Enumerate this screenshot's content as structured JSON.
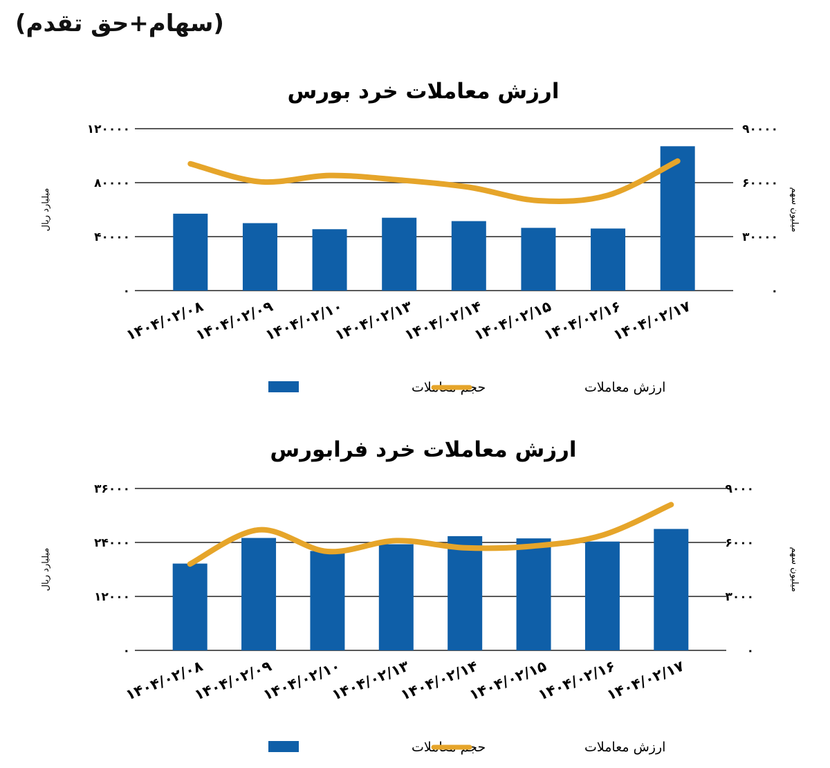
{
  "heading": "(سهام+حق تقدم)",
  "chart_data": [
    {
      "type": "bar",
      "title": "ارزش معاملات خرد بورس",
      "ylabel": "میلیارد ریال",
      "y2label": "میلیون سهم",
      "ylim": [
        0,
        120000
      ],
      "y2lim": [
        0,
        90000
      ],
      "yticks": [
        "۱۲۰۰۰۰",
        "۸۰۰۰۰",
        "۴۰۰۰۰",
        "۰"
      ],
      "y2ticks": [
        "۹۰۰۰۰",
        "۶۰۰۰۰",
        "۳۰۰۰۰",
        "۰"
      ],
      "grid": true,
      "legend": "bottom",
      "categories": [
        "۱۴۰۴/۰۲/۰۸",
        "۱۴۰۴/۰۲/۰۹",
        "۱۴۰۴/۰۲/۱۰",
        "۱۴۰۴/۰۲/۱۳",
        "۱۴۰۴/۰۲/۱۴",
        "۱۴۰۴/۰۲/۱۵",
        "۱۴۰۴/۰۲/۱۶",
        "۱۴۰۴/۰۲/۱۷"
      ],
      "series": [
        {
          "name": "حجم معاملات",
          "kind": "bar",
          "axis": "left",
          "color": "#0f5fa8",
          "values": [
            57000,
            50000,
            45500,
            54000,
            51500,
            46500,
            46000,
            107000
          ]
        },
        {
          "name": "ارزش معاملات",
          "kind": "line",
          "axis": "right",
          "color": "#e6a52a",
          "values": [
            70500,
            60500,
            64000,
            61500,
            57500,
            50000,
            53000,
            72000
          ]
        }
      ]
    },
    {
      "type": "bar",
      "title": "ارزش معاملات خرد فرابورس",
      "ylabel": "میلیارد ریال",
      "y2label": "میلیون سهم",
      "ylim": [
        0,
        36000
      ],
      "y2lim": [
        0,
        9000
      ],
      "yticks": [
        "۳۶۰۰۰",
        "۲۴۰۰۰",
        "۱۲۰۰۰",
        "۰"
      ],
      "y2ticks": [
        "۹۰۰۰",
        "۶۰۰۰",
        "۳۰۰۰",
        "۰"
      ],
      "grid": true,
      "legend": "bottom",
      "categories": [
        "۱۴۰۴/۰۲/۰۸",
        "۱۴۰۴/۰۲/۰۹",
        "۱۴۰۴/۰۲/۱۰",
        "۱۴۰۴/۰۲/۱۳",
        "۱۴۰۴/۰۲/۱۴",
        "۱۴۰۴/۰۲/۱۵",
        "۱۴۰۴/۰۲/۱۶",
        "۱۴۰۴/۰۲/۱۷"
      ],
      "series": [
        {
          "name": "حجم معاملات",
          "kind": "bar",
          "axis": "left",
          "color": "#0f5fa8",
          "values": [
            19300,
            25000,
            22100,
            23600,
            25400,
            24900,
            24200,
            27000
          ]
        },
        {
          "name": "ارزش معاملات",
          "kind": "line",
          "axis": "right",
          "color": "#e6a52a",
          "values": [
            4800,
            6700,
            5500,
            6100,
            5700,
            5800,
            6400,
            8100
          ]
        }
      ]
    }
  ]
}
